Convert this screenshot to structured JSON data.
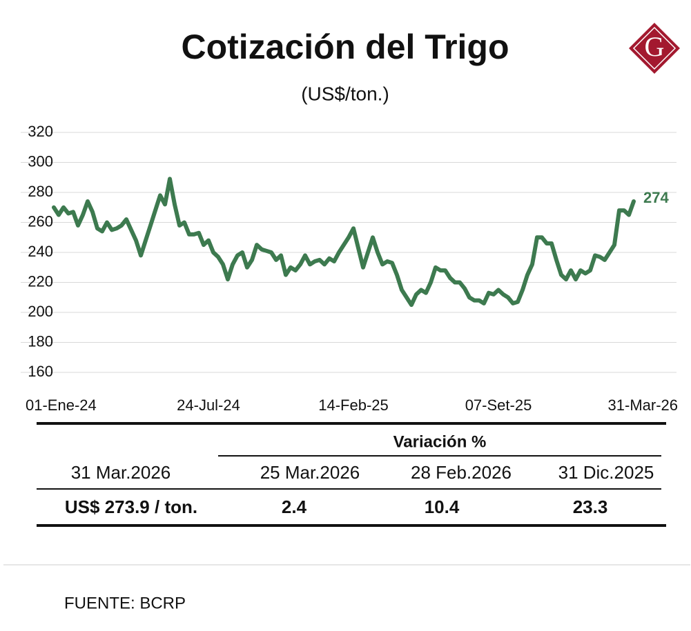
{
  "chart_data": {
    "type": "line",
    "title": "Cotización del Trigo",
    "subtitle": "(US$/ton.)",
    "categories": [
      "01-Ene-24",
      null,
      null,
      null,
      null,
      null,
      null,
      null,
      null,
      null,
      null,
      null,
      null,
      null,
      null,
      null,
      null,
      null,
      null,
      null,
      null,
      null,
      null,
      null,
      null,
      null,
      null,
      null,
      null,
      null,
      "24-Jul-24",
      null,
      null,
      null,
      null,
      null,
      null,
      null,
      null,
      null,
      null,
      null,
      null,
      null,
      null,
      null,
      null,
      null,
      null,
      null,
      null,
      null,
      null,
      null,
      null,
      null,
      null,
      null,
      null,
      null,
      "14-Feb-25",
      null,
      null,
      null,
      null,
      null,
      null,
      null,
      null,
      null,
      null,
      null,
      null,
      null,
      null,
      null,
      null,
      null,
      null,
      null,
      null,
      null,
      null,
      null,
      null,
      null,
      null,
      null,
      null,
      null,
      "07-Set-25",
      null,
      null,
      null,
      null,
      null,
      null,
      null,
      null,
      null,
      null,
      null,
      null,
      null,
      null,
      null,
      null,
      null,
      null,
      null,
      null,
      null,
      null,
      null,
      null,
      null,
      null,
      null,
      null,
      null,
      "31-Mar-26"
    ],
    "series": [
      {
        "name": "Trigo",
        "color": "#3d7a4f",
        "values": [
          270,
          265,
          270,
          266,
          267,
          258,
          265,
          274,
          267,
          256,
          254,
          260,
          255,
          256,
          258,
          262,
          255,
          248,
          238,
          248,
          258,
          268,
          278,
          272,
          289,
          272,
          258,
          260,
          252,
          252,
          253,
          245,
          248,
          240,
          237,
          232,
          222,
          232,
          238,
          240,
          230,
          235,
          245,
          242,
          241,
          240,
          235,
          238,
          225,
          230,
          228,
          232,
          238,
          232,
          234,
          235,
          232,
          236,
          234,
          240,
          245,
          250,
          256,
          243,
          230,
          240,
          250,
          240,
          232,
          234,
          233,
          225,
          215,
          210,
          205,
          212,
          215,
          213,
          220,
          230,
          228,
          228,
          223,
          220,
          220,
          216,
          210,
          208,
          208,
          206,
          213,
          212,
          215,
          212,
          210,
          206,
          207,
          215,
          225,
          232,
          250,
          250,
          246,
          246,
          235,
          225,
          222,
          228,
          222,
          228,
          226,
          228,
          238,
          237,
          235,
          240,
          245,
          268,
          268,
          265,
          274
        ]
      }
    ],
    "end_label": "274",
    "ylim": [
      160,
      320
    ],
    "yticks": [
      160,
      180,
      200,
      220,
      240,
      260,
      280,
      300,
      320
    ],
    "grid": true
  },
  "logo": "G",
  "table": {
    "group_header": "Variación %",
    "columns": [
      "31 Mar.2026",
      "25 Mar.2026",
      "28 Feb.2026",
      "31 Dic.2025"
    ],
    "rows": [
      [
        "US$ 273.9 / ton.",
        "2.4",
        "10.4",
        "23.3"
      ]
    ]
  },
  "source": "FUENTE: BCRP"
}
